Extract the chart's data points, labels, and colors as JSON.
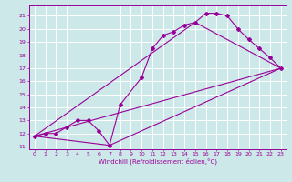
{
  "xlabel": "Windchill (Refroidissement éolien,°C)",
  "bg_color": "#cce8e8",
  "grid_color": "#ffffff",
  "line_color": "#990099",
  "xlim": [
    -0.5,
    23.5
  ],
  "ylim": [
    10.8,
    21.8
  ],
  "yticks": [
    11,
    12,
    13,
    14,
    15,
    16,
    17,
    18,
    19,
    20,
    21
  ],
  "xticks": [
    0,
    1,
    2,
    3,
    4,
    5,
    6,
    7,
    8,
    9,
    10,
    11,
    12,
    13,
    14,
    15,
    16,
    17,
    18,
    19,
    20,
    21,
    22,
    23
  ],
  "lines": [
    {
      "x": [
        0,
        1,
        2,
        3,
        4,
        5,
        6,
        7,
        8,
        10,
        11,
        12,
        13,
        14,
        15,
        16,
        17,
        18,
        19,
        20,
        21,
        22,
        23
      ],
      "y": [
        11.8,
        12.0,
        12.0,
        12.5,
        13.0,
        13.0,
        12.2,
        11.1,
        14.2,
        16.3,
        18.5,
        19.5,
        19.8,
        20.3,
        20.5,
        21.2,
        21.2,
        21.0,
        20.0,
        19.2,
        18.5,
        17.8,
        17.0
      ]
    },
    {
      "x": [
        0,
        23
      ],
      "y": [
        11.8,
        17.0
      ]
    },
    {
      "x": [
        0,
        7,
        23
      ],
      "y": [
        11.8,
        11.1,
        17.0
      ]
    },
    {
      "x": [
        0,
        15,
        23
      ],
      "y": [
        11.8,
        20.5,
        17.0
      ]
    }
  ]
}
